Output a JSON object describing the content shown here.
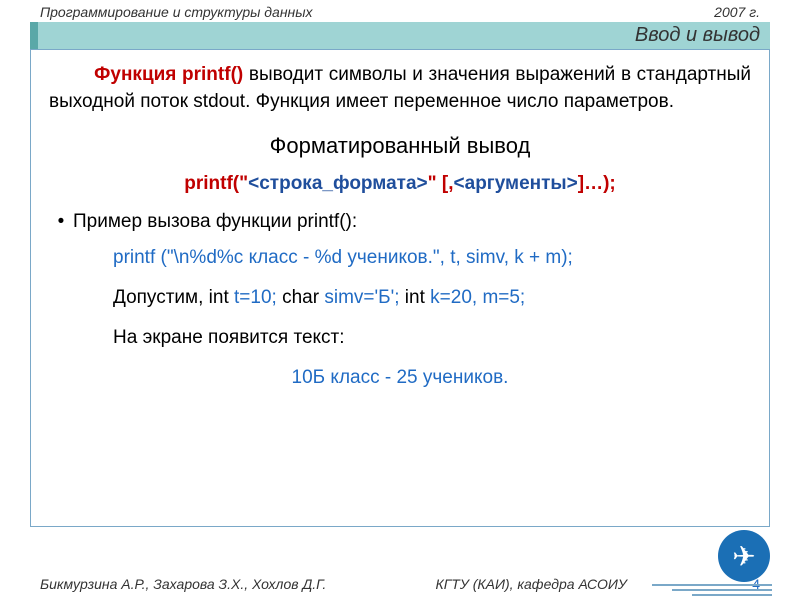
{
  "colors": {
    "titlebar_bg": "#9fd4d4",
    "titlebar_accent": "#5aa8a8",
    "border": "#7aa8c8",
    "red": "#c00000",
    "blue": "#206bc4",
    "darkblue": "#1f4e9c",
    "plane_bg": "#1b6fb5",
    "text": "#000000"
  },
  "header": {
    "left": "Программирование  и структуры данных",
    "right": "2007 г."
  },
  "titlebar": "Ввод и вывод",
  "para1": {
    "func": "Функция  printf()",
    "rest": " выводит символы и значения выражений в стандартный выходной поток stdout. Функция имеет переменное число параметров."
  },
  "subtitle": "Форматированный вывод",
  "syntax": {
    "p1": "printf(\"",
    "p2": "<строка_формата>",
    "p3": "\" [,",
    "p4": "<аргументы>",
    "p5": "]…);"
  },
  "bullet": "Пример вызова функции printf():",
  "example": "printf (\"\\n%d%c класс - %d учеников.\", t, simv, k + m);",
  "assume": {
    "pre": "Допустим,        ",
    "k1": "int ",
    "v1": "t=10;   ",
    "k2": "char ",
    "v2": "simv='Б';  ",
    "k3": "int ",
    "v3": "k=20, m=5;"
  },
  "screen_text": "На экране появится текст:",
  "output": "10Б класс - 25 учеников.",
  "footer": {
    "authors": "Бикмурзина А.Р., Захарова З.Х., Хохлов Д.Г.",
    "org": "КГТУ  (КАИ),  кафедра АСОИУ",
    "page": "4"
  },
  "plane_glyph": "✈"
}
